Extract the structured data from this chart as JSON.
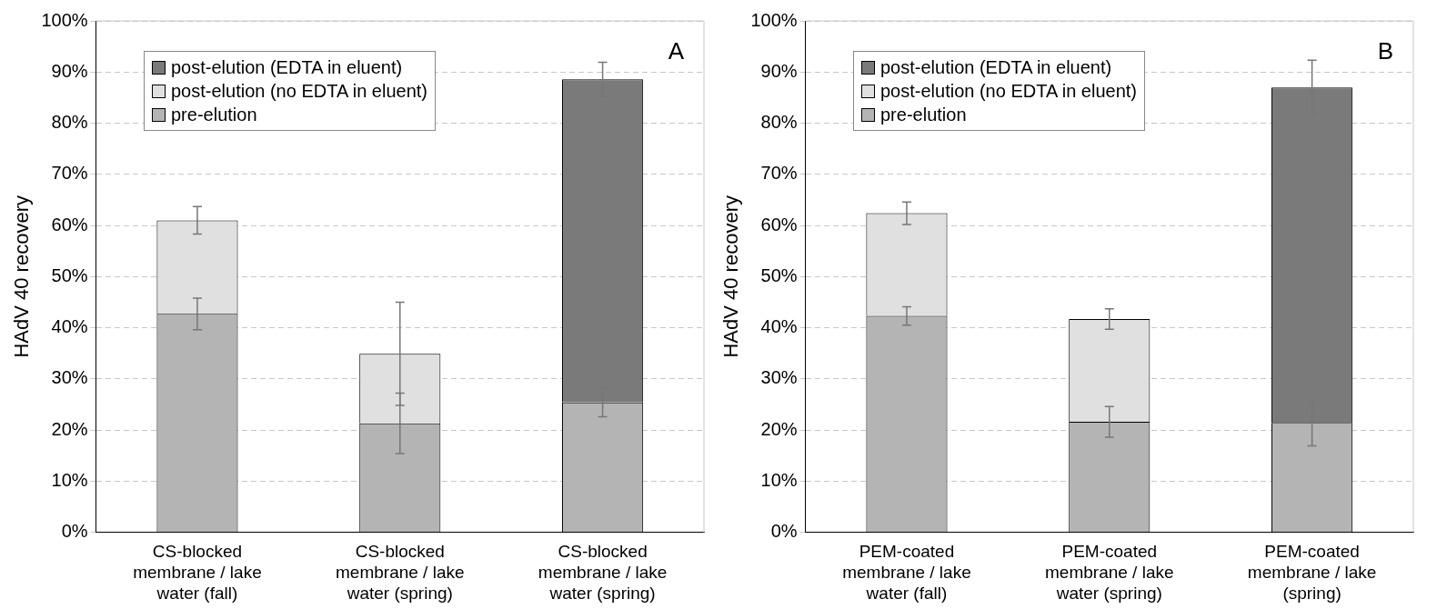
{
  "chart_data": [
    {
      "type": "bar",
      "stacked": true,
      "ylabel": "HAdV 40 recovery",
      "annotations": [
        "A"
      ],
      "categories": [
        "CS-blocked membrane / lake water (fall)",
        "CS-blocked membrane / lake water (spring)",
        "CS-blocked membrane / lake water (spring)"
      ],
      "series": [
        {
          "name": "pre-elution",
          "color": "#b4b4b4",
          "values": [
            42.7,
            21.3,
            25.4
          ],
          "errors": [
            3.1,
            5.9,
            2.8
          ]
        },
        {
          "name": "post-elution (no EDTA in eluent)",
          "color": "#e0e0e0",
          "values": [
            18.3,
            13.6,
            null
          ],
          "errors": [
            2.7,
            10.1,
            null
          ]
        },
        {
          "name": "post-elution (EDTA in eluent)",
          "color": "#7a7a7a",
          "values": [
            null,
            null,
            63.2
          ],
          "errors": [
            null,
            null,
            3.3
          ]
        }
      ],
      "ylim": [
        0,
        100
      ],
      "yticks": [
        {
          "value": 0,
          "label": "0%"
        },
        {
          "value": 10,
          "label": "10%"
        },
        {
          "value": 20,
          "label": "20%"
        },
        {
          "value": 30,
          "label": "30%"
        },
        {
          "value": 40,
          "label": "40%"
        },
        {
          "value": 50,
          "label": "50%"
        },
        {
          "value": 60,
          "label": "60%"
        },
        {
          "value": 70,
          "label": "70%"
        },
        {
          "value": 80,
          "label": "80%"
        },
        {
          "value": 90,
          "label": "90%"
        },
        {
          "value": 100,
          "label": "100%"
        }
      ],
      "grid": "y",
      "legend": "top left"
    },
    {
      "type": "bar",
      "stacked": true,
      "ylabel": "HAdV 40 recovery",
      "annotations": [
        "B"
      ],
      "categories": [
        "PEM-coated membrane / lake water (fall)",
        "PEM-coated membrane / lake water (spring)",
        "PEM-coated membrane / lake (spring)"
      ],
      "series": [
        {
          "name": "pre-elution",
          "color": "#b4b4b4",
          "values": [
            42.3,
            21.6,
            21.4
          ],
          "errors": [
            1.8,
            3.0,
            4.5
          ]
        },
        {
          "name": "post-elution (no EDTA in eluent)",
          "color": "#e0e0e0",
          "values": [
            20.1,
            20.1,
            null
          ],
          "errors": [
            2.2,
            2.0,
            null
          ]
        },
        {
          "name": "post-elution (EDTA in eluent)",
          "color": "#7a7a7a",
          "values": [
            null,
            null,
            65.6
          ],
          "errors": [
            null,
            null,
            5.3
          ]
        }
      ],
      "ylim": [
        0,
        100
      ],
      "yticks": [
        {
          "value": 0,
          "label": "0%"
        },
        {
          "value": 10,
          "label": "10%"
        },
        {
          "value": 20,
          "label": "20%"
        },
        {
          "value": 30,
          "label": "30%"
        },
        {
          "value": 40,
          "label": "40%"
        },
        {
          "value": 50,
          "label": "50%"
        },
        {
          "value": 60,
          "label": "60%"
        },
        {
          "value": 70,
          "label": "70%"
        },
        {
          "value": 80,
          "label": "80%"
        },
        {
          "value": 90,
          "label": "90%"
        },
        {
          "value": 100,
          "label": "100%"
        }
      ],
      "grid": "y",
      "legend": "top left"
    }
  ]
}
